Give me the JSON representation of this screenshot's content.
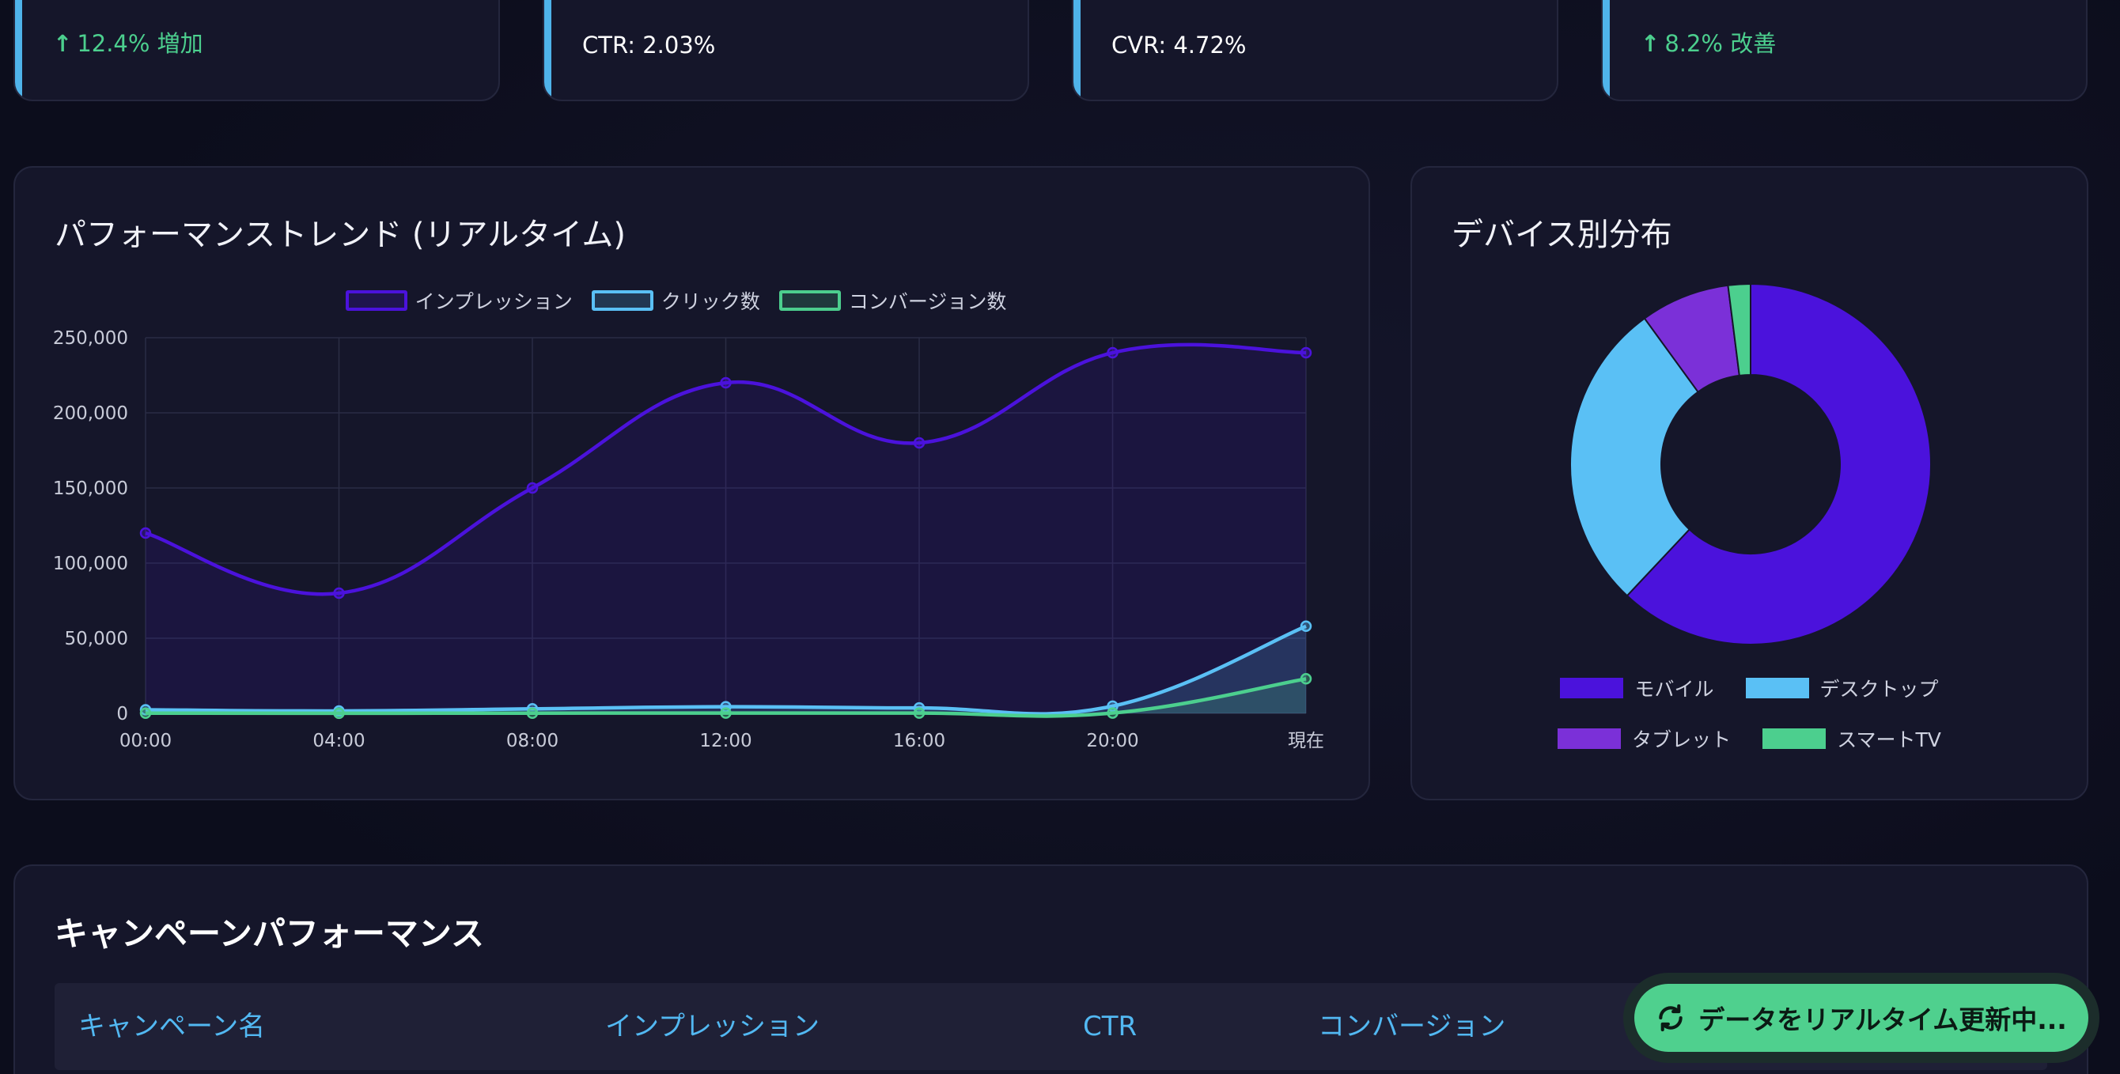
{
  "kpis": [
    {
      "text": "12.4% 増加",
      "style": "green-up"
    },
    {
      "text": "CTR: 2.03%",
      "style": "white"
    },
    {
      "text": "CVR: 4.72%",
      "style": "white"
    },
    {
      "text": "8.2% 改善",
      "style": "green-up"
    }
  ],
  "trend_panel": {
    "title": "パフォーマンストレンド (リアルタイム)"
  },
  "device_panel": {
    "title": "デバイス別分布"
  },
  "campaign_panel": {
    "title": "キャンペーンパフォーマンス",
    "columns": [
      "キャンペーン名",
      "インプレッション",
      "CTR",
      "コンバージョン"
    ]
  },
  "live_button": {
    "label": "データをリアルタイム更新中...",
    "icon": "refresh-icon"
  },
  "colors": {
    "impressions": "#4b12dc",
    "clicks": "#5ac0f5",
    "conversions": "#4ccf8e",
    "tablet": "#7b30d8"
  },
  "chart_data": [
    {
      "type": "line",
      "x": [
        "00:00",
        "04:00",
        "08:00",
        "12:00",
        "16:00",
        "20:00",
        "現在"
      ],
      "series": [
        {
          "name": "インプレッション",
          "values": [
            120000,
            80000,
            150000,
            220000,
            180000,
            240000,
            240000
          ]
        },
        {
          "name": "クリック数",
          "values": [
            2400,
            1600,
            3000,
            4400,
            3600,
            4800,
            58000
          ]
        },
        {
          "name": "コンバージョン数",
          "values": [
            113,
            76,
            142,
            208,
            170,
            227,
            23000
          ]
        }
      ],
      "ylim": [
        0,
        250000
      ],
      "yticks": [
        "0",
        "50,000",
        "100,000",
        "150,000",
        "200,000",
        "250,000"
      ],
      "legend": "top-center",
      "grid": true
    },
    {
      "type": "pie",
      "categories": [
        "モバイル",
        "デスクトップ",
        "タブレット",
        "スマートTV"
      ],
      "values": [
        62,
        28,
        8,
        2
      ],
      "colors": [
        "#4b12dc",
        "#5ac0f5",
        "#7b30d8",
        "#4ccf8e"
      ],
      "legend": "bottom"
    }
  ]
}
